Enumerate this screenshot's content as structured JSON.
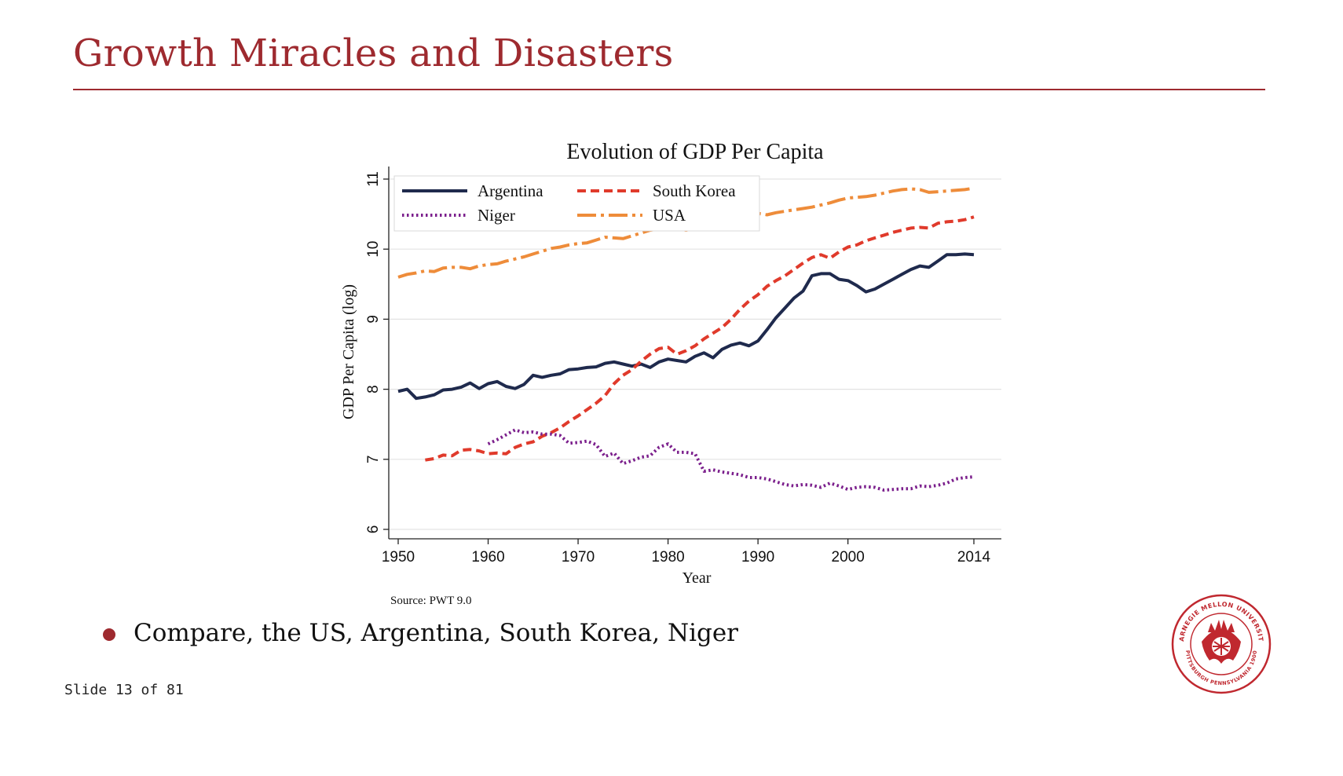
{
  "slide": {
    "title": "Growth Miracles and Disasters",
    "bullet": "Compare, the US, Argentina, South Korea, Niger",
    "counter": "Slide 13 of 81",
    "accent_color": "#9e2a2f"
  },
  "logo": {
    "name": "carnegie-mellon-seal",
    "top_text": "CARNEGIE MELLON UNIVERSITY",
    "bottom_text": "PITTSBURGH PENNSYLVANIA 1900"
  },
  "chart_data": {
    "type": "line",
    "title": "Evolution of GDP Per Capita",
    "xlabel": "Year",
    "ylabel": "GDP Per Capita (log)",
    "source": "Source: PWT 9.0",
    "xlim": [
      1950,
      2014
    ],
    "ylim": [
      6,
      11
    ],
    "xticks": [
      1950,
      1960,
      1970,
      1980,
      1990,
      2000,
      2014
    ],
    "yticks": [
      6,
      7,
      8,
      9,
      10,
      11
    ],
    "grid": true,
    "legend": "top-left",
    "series": [
      {
        "name": "Argentina",
        "color": "#1f2a4d",
        "dash": "solid",
        "x": [
          1950,
          1951,
          1952,
          1953,
          1954,
          1955,
          1956,
          1957,
          1958,
          1959,
          1960,
          1961,
          1962,
          1963,
          1964,
          1965,
          1966,
          1967,
          1968,
          1969,
          1970,
          1971,
          1972,
          1973,
          1974,
          1975,
          1976,
          1977,
          1978,
          1979,
          1980,
          1981,
          1982,
          1983,
          1984,
          1985,
          1986,
          1987,
          1988,
          1989,
          1990,
          1991,
          1992,
          1993,
          1994,
          1995,
          1996,
          1997,
          1998,
          1999,
          2000,
          2001,
          2002,
          2003,
          2004,
          2005,
          2006,
          2007,
          2008,
          2009,
          2010,
          2011,
          2012,
          2013,
          2014
        ],
        "y": [
          7.97,
          8.0,
          7.87,
          7.89,
          7.92,
          7.99,
          8.0,
          8.03,
          8.09,
          8.01,
          8.08,
          8.11,
          8.04,
          8.01,
          8.07,
          8.2,
          8.17,
          8.2,
          8.22,
          8.28,
          8.29,
          8.31,
          8.32,
          8.37,
          8.39,
          8.36,
          8.33,
          8.36,
          8.31,
          8.39,
          8.43,
          8.41,
          8.39,
          8.47,
          8.52,
          8.45,
          8.57,
          8.63,
          8.66,
          8.62,
          8.69,
          8.85,
          9.02,
          9.16,
          9.3,
          9.4,
          9.62,
          9.65,
          9.65,
          9.57,
          9.55,
          9.48,
          9.39,
          9.43,
          9.5,
          9.57,
          9.64,
          9.71,
          9.76,
          9.74,
          9.83,
          9.92,
          9.92,
          9.93,
          9.92
        ]
      },
      {
        "name": "South Korea",
        "color": "#e03a2b",
        "dash": "dash",
        "x": [
          1953,
          1954,
          1955,
          1956,
          1957,
          1958,
          1959,
          1960,
          1961,
          1962,
          1963,
          1964,
          1965,
          1966,
          1967,
          1968,
          1969,
          1970,
          1971,
          1972,
          1973,
          1974,
          1975,
          1976,
          1977,
          1978,
          1979,
          1980,
          1981,
          1982,
          1983,
          1984,
          1985,
          1986,
          1987,
          1988,
          1989,
          1990,
          1991,
          1992,
          1993,
          1994,
          1995,
          1996,
          1997,
          1998,
          1999,
          2000,
          2001,
          2002,
          2003,
          2004,
          2005,
          2006,
          2007,
          2008,
          2009,
          2010,
          2011,
          2012,
          2013,
          2014
        ],
        "y": [
          6.99,
          7.01,
          7.06,
          7.05,
          7.13,
          7.14,
          7.12,
          7.08,
          7.09,
          7.08,
          7.17,
          7.22,
          7.25,
          7.33,
          7.38,
          7.45,
          7.54,
          7.62,
          7.71,
          7.8,
          7.91,
          8.08,
          8.2,
          8.28,
          8.4,
          8.5,
          8.58,
          8.6,
          8.5,
          8.55,
          8.62,
          8.72,
          8.8,
          8.88,
          9.0,
          9.14,
          9.26,
          9.35,
          9.47,
          9.55,
          9.62,
          9.71,
          9.8,
          9.88,
          9.92,
          9.87,
          9.96,
          10.03,
          10.06,
          10.12,
          10.16,
          10.2,
          10.24,
          10.27,
          10.3,
          10.31,
          10.3,
          10.37,
          10.39,
          10.4,
          10.42,
          10.46
        ]
      },
      {
        "name": "Niger",
        "color": "#7b1f8c",
        "dash": "dot",
        "x": [
          1960,
          1961,
          1962,
          1963,
          1964,
          1965,
          1966,
          1967,
          1968,
          1969,
          1970,
          1971,
          1972,
          1973,
          1974,
          1975,
          1976,
          1977,
          1978,
          1979,
          1980,
          1981,
          1982,
          1983,
          1984,
          1985,
          1986,
          1987,
          1988,
          1989,
          1990,
          1991,
          1992,
          1993,
          1994,
          1995,
          1996,
          1997,
          1998,
          1999,
          2000,
          2001,
          2002,
          2003,
          2004,
          2005,
          2006,
          2007,
          2008,
          2009,
          2010,
          2011,
          2012,
          2013,
          2014
        ],
        "y": [
          7.22,
          7.28,
          7.35,
          7.42,
          7.38,
          7.39,
          7.36,
          7.36,
          7.34,
          7.23,
          7.24,
          7.26,
          7.21,
          7.04,
          7.09,
          6.94,
          6.98,
          7.03,
          7.05,
          7.17,
          7.22,
          7.1,
          7.1,
          7.08,
          6.83,
          6.85,
          6.82,
          6.8,
          6.78,
          6.74,
          6.74,
          6.72,
          6.68,
          6.64,
          6.62,
          6.64,
          6.63,
          6.6,
          6.66,
          6.62,
          6.57,
          6.6,
          6.61,
          6.6,
          6.56,
          6.57,
          6.58,
          6.58,
          6.62,
          6.61,
          6.63,
          6.66,
          6.72,
          6.74,
          6.75
        ]
      },
      {
        "name": "USA",
        "color": "#ee8c3a",
        "dash": "dashdot",
        "x": [
          1950,
          1951,
          1952,
          1953,
          1954,
          1955,
          1956,
          1957,
          1958,
          1959,
          1960,
          1961,
          1962,
          1963,
          1964,
          1965,
          1966,
          1967,
          1968,
          1969,
          1970,
          1971,
          1972,
          1973,
          1974,
          1975,
          1976,
          1977,
          1978,
          1979,
          1980,
          1981,
          1982,
          1983,
          1984,
          1985,
          1986,
          1987,
          1988,
          1989,
          1990,
          1991,
          1992,
          1993,
          1994,
          1995,
          1996,
          1997,
          1998,
          1999,
          2000,
          2001,
          2002,
          2003,
          2004,
          2005,
          2006,
          2007,
          2008,
          2009,
          2010,
          2011,
          2012,
          2013,
          2014
        ],
        "y": [
          9.6,
          9.64,
          9.66,
          9.69,
          9.68,
          9.73,
          9.74,
          9.74,
          9.72,
          9.76,
          9.78,
          9.79,
          9.83,
          9.86,
          9.89,
          9.93,
          9.97,
          10.01,
          10.03,
          10.06,
          10.08,
          10.09,
          10.13,
          10.17,
          10.16,
          10.15,
          10.19,
          10.23,
          10.27,
          10.29,
          10.28,
          10.3,
          10.27,
          10.3,
          10.35,
          10.38,
          10.41,
          10.44,
          10.47,
          10.5,
          10.51,
          10.49,
          10.52,
          10.54,
          10.56,
          10.58,
          10.6,
          10.63,
          10.66,
          10.7,
          10.73,
          10.74,
          10.75,
          10.77,
          10.8,
          10.83,
          10.85,
          10.86,
          10.85,
          10.81,
          10.82,
          10.83,
          10.84,
          10.85,
          10.87
        ]
      }
    ]
  }
}
